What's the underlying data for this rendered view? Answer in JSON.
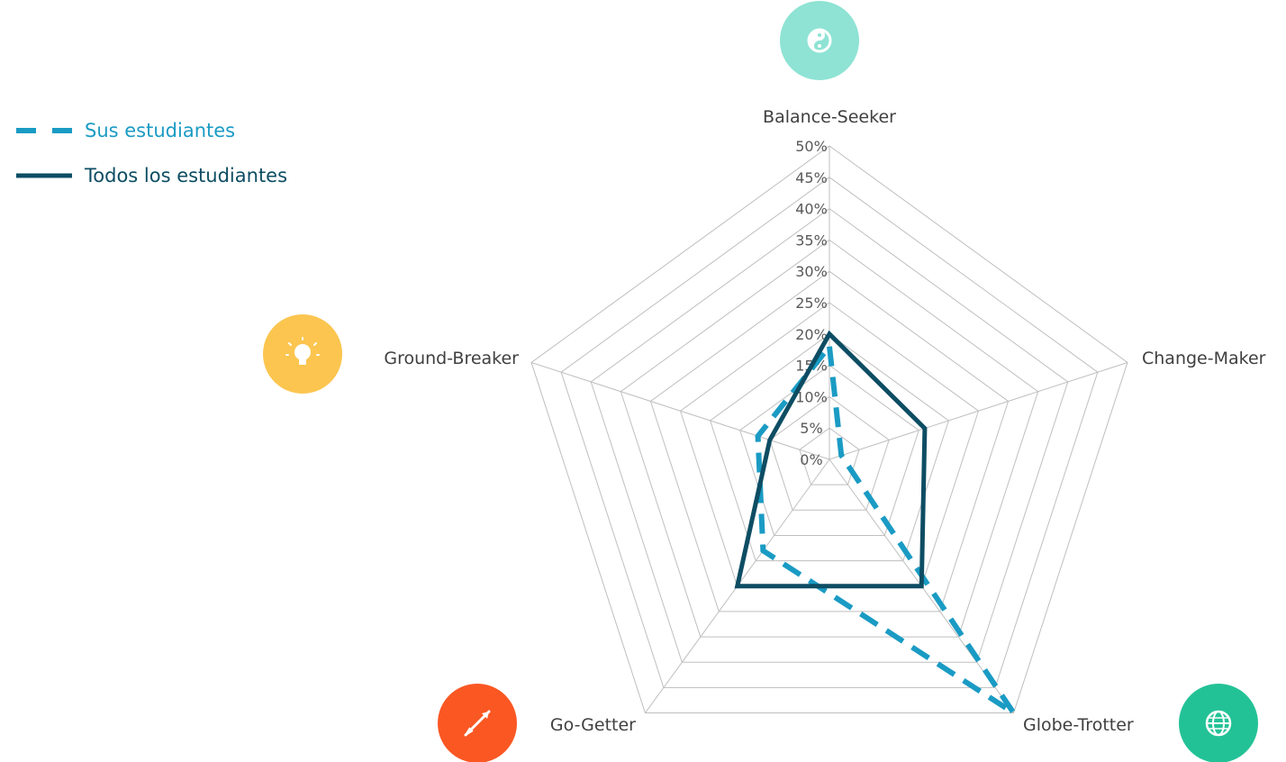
{
  "legend": {
    "series1_label": "Sus estudiantes",
    "series2_label": "Todos los estudiantes"
  },
  "colors": {
    "series1": "#1A9BC4",
    "series2": "#0D4D63",
    "grid": "#BFBFBF",
    "balance": "#8EE3D4",
    "ground": "#FBC54F",
    "gogetter": "#FA5723",
    "globe": "#23C296"
  },
  "chart_data": {
    "type": "radar",
    "categories": [
      "Balance-Seeker",
      "Change-Maker",
      "Globe-Trotter",
      "Go-Getter",
      "Ground-Breaker"
    ],
    "series": [
      {
        "name": "Sus estudiantes",
        "values": [
          18,
          2,
          50,
          18,
          12
        ]
      },
      {
        "name": "Todos los estudiantes",
        "values": [
          20,
          16,
          25,
          25,
          10
        ]
      }
    ],
    "ylim": [
      0,
      50
    ],
    "tick_labels": [
      "0%",
      "5%",
      "10%",
      "15%",
      "20%",
      "25%",
      "30%",
      "35%",
      "40%",
      "45%",
      "50%"
    ],
    "grid": true,
    "legend_position": "top-left"
  },
  "icons": [
    "yin-yang-icon",
    "globe-icon",
    "arrow-icon",
    "lightbulb-icon"
  ]
}
